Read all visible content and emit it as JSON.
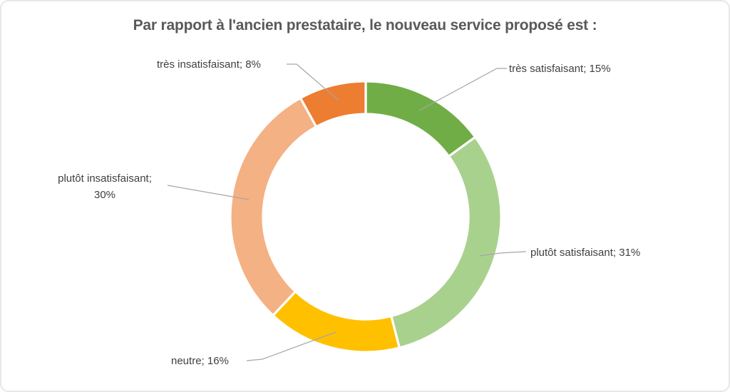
{
  "title": "Par rapport à l'ancien prestataire, le nouveau service proposé est :",
  "frame": {
    "background_color": "#ffffff",
    "border_color": "#e7e7e7"
  },
  "chart_data": {
    "type": "pie",
    "subtype": "donut",
    "title": "Par rapport à l'ancien prestataire, le nouveau service proposé est :",
    "unit": "%",
    "total": 100,
    "start_angle_deg": 0,
    "direction": "clockwise",
    "inner_radius_ratio": 0.758,
    "legend_position": "none",
    "data_labels": "outside-with-leader-lines",
    "leader_line_color": "#A6A6A6",
    "slice_gap_color": "#ffffff",
    "slices": [
      {
        "name": "très satisfaisant",
        "value": 15,
        "label": "très satisfaisant; 15%",
        "color": "#70AD47"
      },
      {
        "name": "plutôt satisfaisant",
        "value": 31,
        "label": "plutôt satisfaisant; 31%",
        "color": "#A9D18E"
      },
      {
        "name": "neutre",
        "value": 16,
        "label": "neutre; 16%",
        "color": "#FFC000"
      },
      {
        "name": "plutôt insatisfaisant",
        "value": 30,
        "label": "plutôt insatisfaisant;\n30%",
        "color": "#F4B183"
      },
      {
        "name": "très insatisfaisant",
        "value": 8,
        "label": "très insatisfaisant; 8%",
        "color": "#ED7D31"
      }
    ],
    "title_color": "#595959",
    "label_color": "#404040"
  }
}
